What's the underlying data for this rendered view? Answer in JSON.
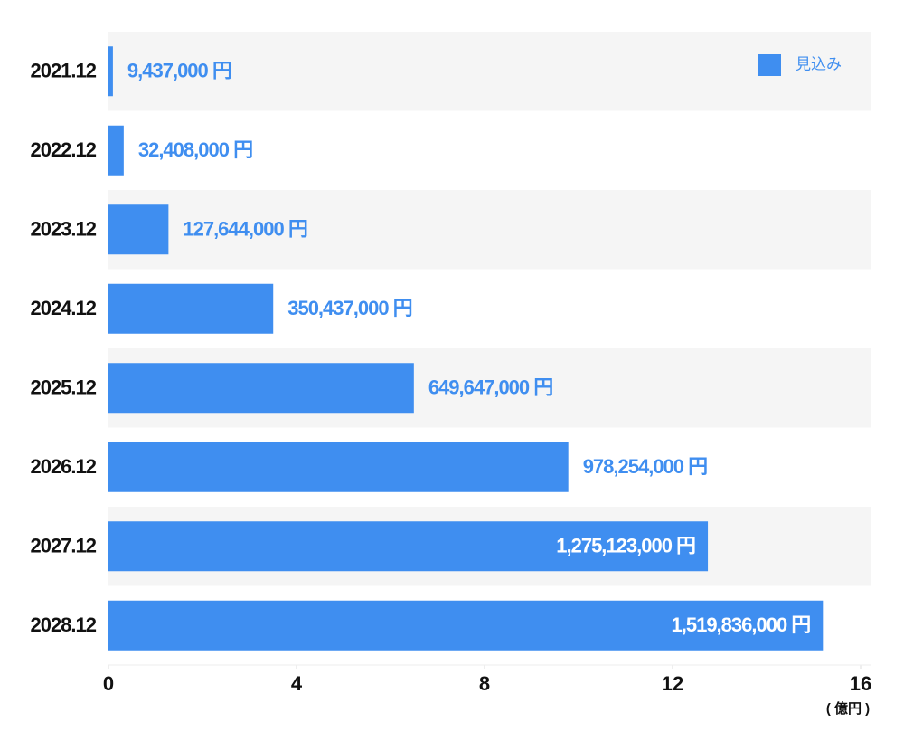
{
  "chart_data": {
    "type": "barh",
    "categories": [
      "2021.12",
      "2022.12",
      "2023.12",
      "2024.12",
      "2025.12",
      "2026.12",
      "2027.12",
      "2028.12"
    ],
    "series": [
      {
        "name": "見込み",
        "color": "#3f8ef0",
        "values": [
          0.09437,
          0.32408,
          1.27644,
          3.50437,
          6.49647,
          9.78254,
          12.75123,
          15.19836
        ],
        "value_labels": [
          "9,437,000 円",
          "32,408,000 円",
          "127,644,000 円",
          "350,437,000 円",
          "649,647,000 円",
          "978,254,000 円",
          "1,275,123,000 円",
          "1,519,836,000 円"
        ]
      }
    ],
    "xlim": [
      0,
      16
    ],
    "xticks": [
      0,
      4,
      8,
      12,
      16
    ],
    "x_unit": "( 億円 )",
    "legend": "top-right"
  }
}
